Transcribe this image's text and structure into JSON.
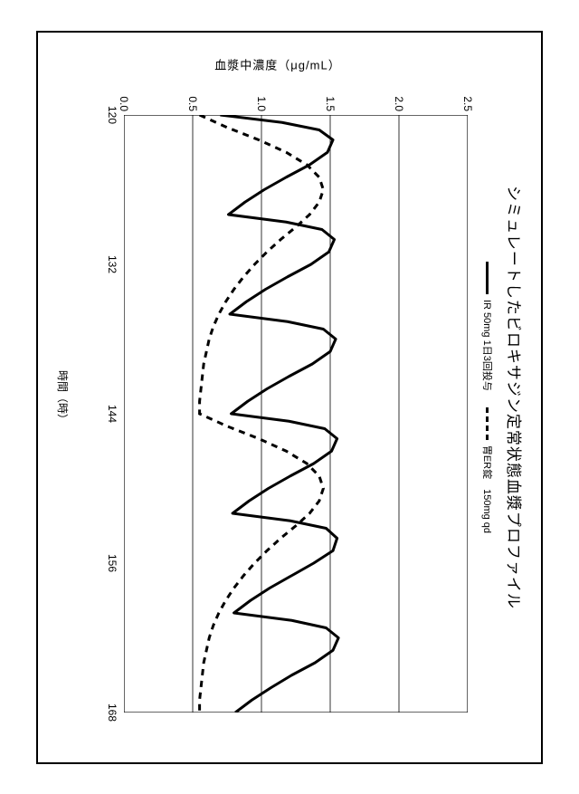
{
  "title": "シミュレートしたビロキサジン定常状態血漿プロファイル",
  "legend": {
    "series1": {
      "label": "IR 50mg 1日3回投与",
      "dash": "solid"
    },
    "series2": {
      "label": "胃ER錠　150mg qd",
      "dash": "dash"
    }
  },
  "axes": {
    "x": {
      "label": "時間（時）",
      "min": 120,
      "max": 168,
      "ticks": [
        120,
        132,
        144,
        156,
        168
      ]
    },
    "y": {
      "label": "血漿中濃度（μg/mL）",
      "min": 0.0,
      "max": 2.5,
      "ticks": [
        0.0,
        0.5,
        1.0,
        1.5,
        2.0,
        2.5
      ]
    }
  },
  "style": {
    "line_width_solid": 3,
    "line_width_dash": 3,
    "dash_pattern": "7,6",
    "axis_color": "#000000",
    "grid_color": "#000000",
    "grid_width": 0.8,
    "background": "#ffffff",
    "title_fontsize": 17,
    "label_fontsize": 13,
    "tick_fontsize": 12
  },
  "series": {
    "ir_tid": {
      "color": "#000000",
      "x": [
        120,
        120.6,
        121.2,
        122,
        123,
        124,
        125,
        126,
        127,
        128,
        128,
        128.6,
        129.2,
        130,
        131,
        132,
        133,
        134,
        135,
        136,
        136,
        136.6,
        137.2,
        138,
        139,
        140,
        141,
        142,
        143,
        144,
        144,
        144.6,
        145.2,
        146,
        147,
        148,
        149,
        150,
        151,
        152,
        152,
        152.6,
        153.2,
        154,
        155,
        156,
        157,
        158,
        159,
        160,
        160,
        160.6,
        161.2,
        162,
        163,
        164,
        165,
        166,
        167,
        168
      ],
      "y": [
        0.7,
        1.15,
        1.42,
        1.52,
        1.48,
        1.35,
        1.18,
        1.02,
        0.88,
        0.76,
        0.76,
        1.18,
        1.44,
        1.53,
        1.49,
        1.36,
        1.19,
        1.03,
        0.89,
        0.77,
        0.77,
        1.19,
        1.45,
        1.54,
        1.5,
        1.37,
        1.2,
        1.04,
        0.9,
        0.78,
        0.78,
        1.2,
        1.46,
        1.55,
        1.51,
        1.38,
        1.21,
        1.05,
        0.91,
        0.79,
        0.79,
        1.21,
        1.47,
        1.55,
        1.52,
        1.38,
        1.22,
        1.06,
        0.92,
        0.8,
        0.8,
        1.22,
        1.47,
        1.56,
        1.52,
        1.39,
        1.22,
        1.07,
        0.93,
        0.81
      ]
    },
    "er_qd": {
      "color": "#000000",
      "x": [
        120,
        121,
        122,
        123,
        124,
        125,
        126,
        127,
        128,
        129,
        130,
        131,
        132,
        133,
        134,
        135,
        136,
        137,
        138,
        139,
        140,
        141,
        142,
        143,
        144,
        144,
        145,
        146,
        147,
        148,
        149,
        150,
        151,
        152,
        153,
        154,
        155,
        156,
        157,
        158,
        159,
        160,
        161,
        162,
        163,
        164,
        165,
        166,
        167,
        168
      ],
      "y": [
        0.55,
        0.75,
        0.98,
        1.18,
        1.33,
        1.42,
        1.45,
        1.42,
        1.35,
        1.25,
        1.14,
        1.04,
        0.95,
        0.87,
        0.8,
        0.74,
        0.69,
        0.65,
        0.62,
        0.6,
        0.58,
        0.57,
        0.56,
        0.55,
        0.55,
        0.55,
        0.75,
        0.98,
        1.18,
        1.33,
        1.42,
        1.45,
        1.42,
        1.35,
        1.25,
        1.14,
        1.04,
        0.95,
        0.87,
        0.8,
        0.74,
        0.69,
        0.65,
        0.62,
        0.6,
        0.58,
        0.57,
        0.56,
        0.55,
        0.55
      ]
    }
  }
}
